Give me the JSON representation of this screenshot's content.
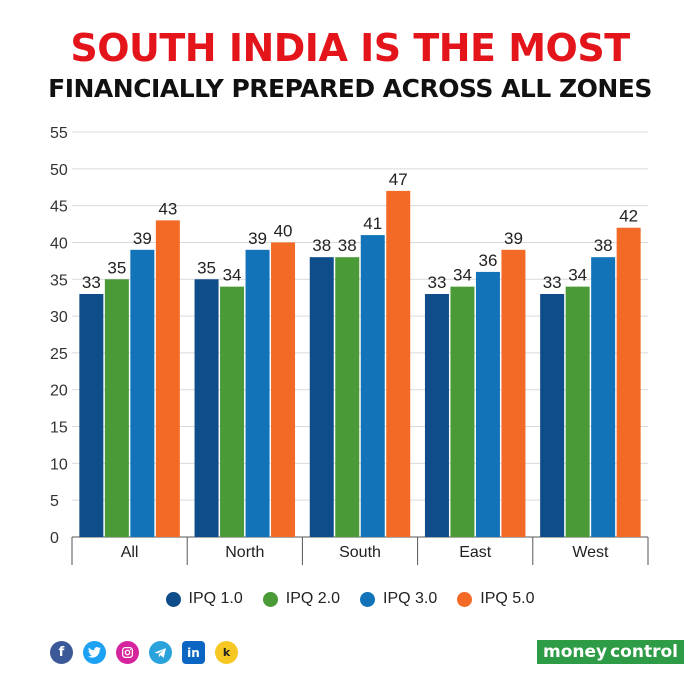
{
  "header": {
    "title_line1": "SOUTH INDIA IS THE MOST",
    "title_line2": "FINANCIALLY PREPARED ACROSS ALL ZONES"
  },
  "chart_data": {
    "type": "bar",
    "title": "SOUTH INDIA IS THE MOST FINANCIALLY PREPARED ACROSS ALL ZONES",
    "xlabel": "",
    "ylabel": "",
    "ylim": [
      0,
      55
    ],
    "yticks": [
      0,
      5,
      10,
      15,
      20,
      25,
      30,
      35,
      40,
      45,
      50,
      55
    ],
    "grid": true,
    "legend_position": "bottom",
    "categories": [
      "All",
      "North",
      "South",
      "East",
      "West"
    ],
    "series": [
      {
        "name": "IPQ 1.0",
        "color": "#0e4c8a",
        "values": [
          33,
          35,
          38,
          33,
          33
        ]
      },
      {
        "name": "IPQ 2.0",
        "color": "#4a9a37",
        "values": [
          35,
          34,
          38,
          34,
          34
        ]
      },
      {
        "name": "IPQ 3.0",
        "color": "#1273b9",
        "values": [
          39,
          39,
          41,
          36,
          38
        ]
      },
      {
        "name": "IPQ 5.0",
        "color": "#f26a26",
        "values": [
          43,
          40,
          47,
          39,
          42
        ]
      }
    ]
  },
  "footer": {
    "social_icons": [
      "facebook-icon",
      "twitter-icon",
      "instagram-icon",
      "telegram-icon",
      "linkedin-icon",
      "koo-icon"
    ],
    "brand_money": "money",
    "brand_control": "control"
  }
}
